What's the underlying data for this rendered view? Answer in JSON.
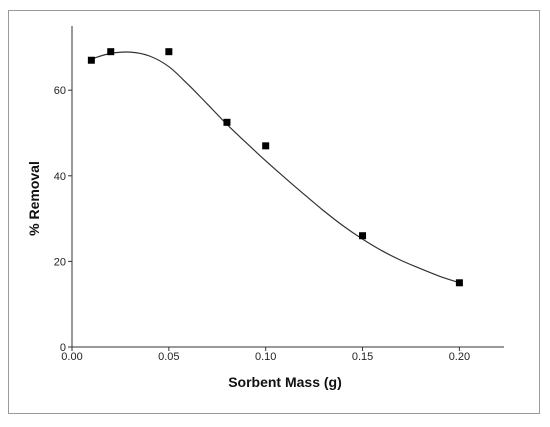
{
  "chart_data": {
    "type": "scatter",
    "title": "",
    "xlabel": "Sorbent Mass (g)",
    "ylabel": "% Removal",
    "xlim": [
      0,
      0.22
    ],
    "ylim": [
      0,
      72
    ],
    "x_ticks": [
      0.0,
      0.05,
      0.1,
      0.15,
      0.2
    ],
    "x_tick_labels": [
      "0.00",
      "0.05",
      "0.10",
      "0.15",
      "0.20"
    ],
    "y_ticks": [
      0,
      20,
      40,
      60
    ],
    "y_tick_labels": [
      "0",
      "20",
      "40",
      "60"
    ],
    "grid": false,
    "legend": "none",
    "series": [
      {
        "marker": "square",
        "color": "#000000",
        "points": [
          {
            "x": 0.01,
            "y": 67.0
          },
          {
            "x": 0.02,
            "y": 69.0
          },
          {
            "x": 0.05,
            "y": 69.0
          },
          {
            "x": 0.08,
            "y": 52.5
          },
          {
            "x": 0.1,
            "y": 47.0
          },
          {
            "x": 0.15,
            "y": 26.0
          },
          {
            "x": 0.2,
            "y": 15.0
          }
        ]
      }
    ],
    "fit_curve": {
      "color": "#333333",
      "points": [
        {
          "x": 0.01,
          "y": 67.3
        },
        {
          "x": 0.02,
          "y": 68.6
        },
        {
          "x": 0.03,
          "y": 68.9
        },
        {
          "x": 0.04,
          "y": 68.0
        },
        {
          "x": 0.05,
          "y": 65.5
        },
        {
          "x": 0.06,
          "y": 61.3
        },
        {
          "x": 0.07,
          "y": 56.7
        },
        {
          "x": 0.08,
          "y": 52.0
        },
        {
          "x": 0.09,
          "y": 47.7
        },
        {
          "x": 0.1,
          "y": 43.5
        },
        {
          "x": 0.11,
          "y": 39.5
        },
        {
          "x": 0.12,
          "y": 35.6
        },
        {
          "x": 0.13,
          "y": 31.8
        },
        {
          "x": 0.14,
          "y": 28.3
        },
        {
          "x": 0.15,
          "y": 25.2
        },
        {
          "x": 0.16,
          "y": 22.5
        },
        {
          "x": 0.17,
          "y": 20.2
        },
        {
          "x": 0.18,
          "y": 18.3
        },
        {
          "x": 0.19,
          "y": 16.5
        },
        {
          "x": 0.2,
          "y": 15.0
        }
      ]
    }
  }
}
